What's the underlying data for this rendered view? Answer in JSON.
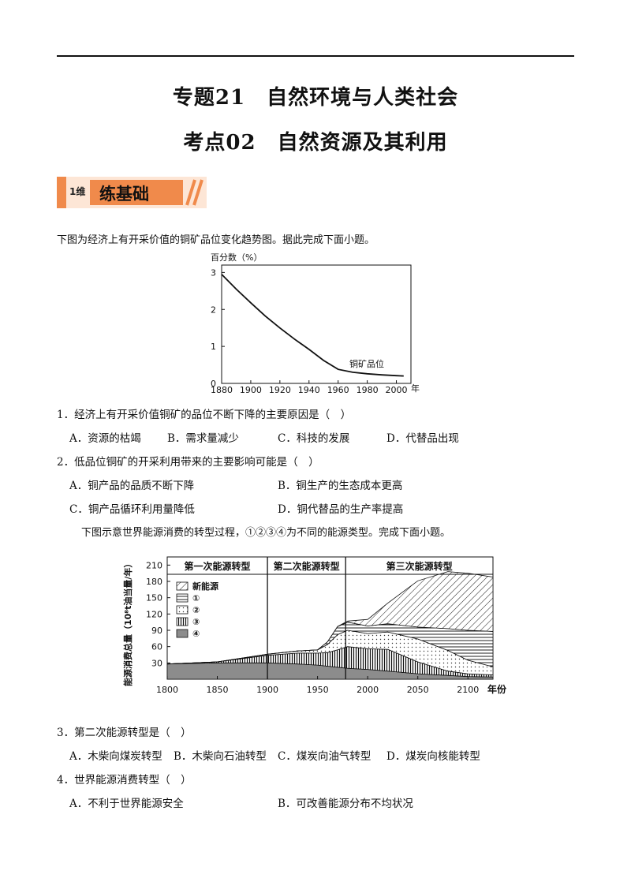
{
  "header": {
    "title1": "专题21　自然环境与人类社会",
    "title2": "考点02　自然资源及其利用"
  },
  "section": {
    "badge": "1维",
    "label": "练基础"
  },
  "intro1": "下图为经济上有开采价值的铜矿品位变化趋势图。据此完成下面小题。",
  "chart_data": [
    {
      "type": "line",
      "ylabel": "百分数（%）",
      "xlabel": "年",
      "x_ticks": [
        "1880",
        "1900",
        "1920",
        "1940",
        "1960",
        "1980",
        "2000"
      ],
      "y_ticks": [
        "0",
        "1",
        "2",
        "3"
      ],
      "xlim": [
        1880,
        2010
      ],
      "ylim": [
        0,
        3.2
      ],
      "series": [
        {
          "name": "铜矿品位",
          "x": [
            1880,
            1890,
            1900,
            1910,
            1920,
            1930,
            1940,
            1950,
            1960,
            1970,
            1980,
            1990,
            2000,
            2005
          ],
          "y": [
            2.95,
            2.55,
            2.18,
            1.82,
            1.5,
            1.2,
            0.92,
            0.62,
            0.38,
            0.3,
            0.26,
            0.23,
            0.21,
            0.2
          ]
        }
      ]
    },
    {
      "type": "area",
      "ylabel": "能源消费总量（10⁸t油当量/年）",
      "xlabel": "年份",
      "x_ticks": [
        "1800",
        "1850",
        "1900",
        "1950",
        "2000",
        "2050",
        "2100"
      ],
      "y_ticks": [
        "30",
        "60",
        "90",
        "120",
        "150",
        "180",
        "210"
      ],
      "xlim": [
        1800,
        2125
      ],
      "ylim": [
        0,
        225
      ],
      "periods": [
        "第一次能源转型",
        "第二次能源转型",
        "第三次能源转型"
      ],
      "legend": [
        "新能源",
        "①",
        "②",
        "③",
        "④"
      ],
      "x": [
        1800,
        1850,
        1900,
        1930,
        1950,
        1960,
        1970,
        1980,
        2000,
        2020,
        2050,
        2080,
        2100,
        2125
      ],
      "series": [
        {
          "name": "④",
          "values": [
            28,
            30,
            30,
            28,
            26,
            24,
            22,
            20,
            18,
            15,
            10,
            7,
            5,
            4
          ]
        },
        {
          "name": "③",
          "values": [
            0,
            2,
            14,
            20,
            22,
            25,
            32,
            40,
            38,
            40,
            22,
            8,
            5,
            4
          ]
        },
        {
          "name": "②",
          "values": [
            0,
            0,
            2,
            4,
            6,
            15,
            28,
            30,
            28,
            32,
            42,
            38,
            25,
            15
          ]
        },
        {
          "name": "①",
          "values": [
            0,
            0,
            0,
            0,
            0,
            5,
            15,
            15,
            14,
            15,
            22,
            40,
            55,
            65
          ]
        },
        {
          "name": "新能源",
          "values": [
            0,
            0,
            0,
            0,
            0,
            0,
            0,
            2,
            12,
            38,
            85,
            105,
            105,
            100
          ]
        }
      ]
    }
  ],
  "questions": [
    {
      "stem": "1．经济上有开采价值铜矿的品位不断下降的主要原因是（　）",
      "options": [
        "A．资源的枯竭",
        "B．需求量减少",
        "C．科技的发展",
        "D．代替品出现"
      ]
    },
    {
      "stem": "2．低品位铜矿的开采利用带来的主要影响可能是（　）",
      "options": [
        "A．铜产品的品质不断下降",
        "B．铜生产的生态成本更高",
        "C．铜产品循环利用量降低",
        "D．铜代替品的生产率提高"
      ]
    }
  ],
  "intro2": "下图示意世界能源消费的转型过程，①②③④为不同的能源类型。完成下面小题。",
  "questions2": [
    {
      "stem": "3．第二次能源转型是（　）",
      "options": [
        "A．木柴向煤炭转型",
        "B．木柴向石油转型",
        "C．煤炭向油气转型",
        "D．煤炭向核能转型"
      ]
    },
    {
      "stem": "4．世界能源消费转型（　）",
      "options": [
        "A．不利于世界能源安全",
        "B．可改善能源分布不均状况"
      ]
    }
  ]
}
